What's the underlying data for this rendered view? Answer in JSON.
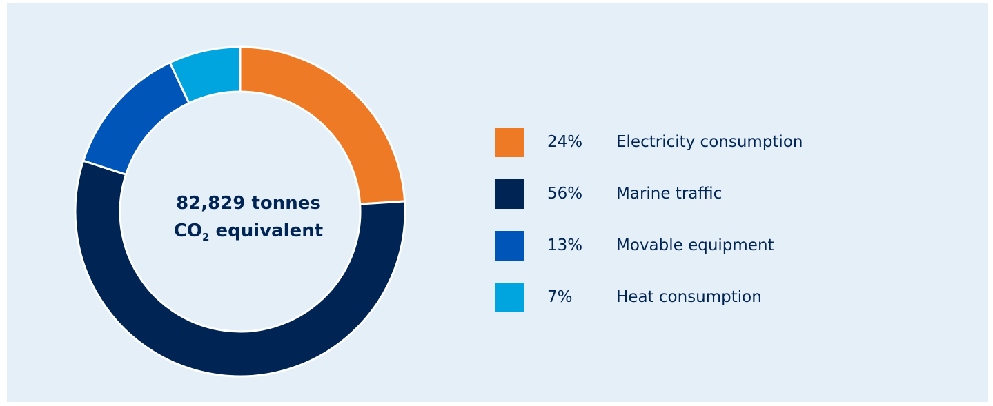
{
  "chart_data": {
    "type": "pie",
    "variant": "donut",
    "center_label": {
      "line1": "82,829 tonnes",
      "line2_prefix": "CO",
      "line2_sub": "2",
      "line2_suffix": " equivalent"
    },
    "slices": [
      {
        "label": "Electricity consumption",
        "value": 24,
        "value_label": "24%",
        "color": "#ee7a26"
      },
      {
        "label": "Marine traffic",
        "value": 56,
        "value_label": "56%",
        "color": "#002454"
      },
      {
        "label": "Movable equipment",
        "value": 13,
        "value_label": "13%",
        "color": "#0055b8"
      },
      {
        "label": "Heat consumption",
        "value": 7,
        "value_label": "7%",
        "color": "#00a5e0"
      }
    ],
    "legend_position": "right"
  },
  "colors": {
    "background": "#e4eff8",
    "text": "#002454",
    "separator": "#ffffff"
  }
}
